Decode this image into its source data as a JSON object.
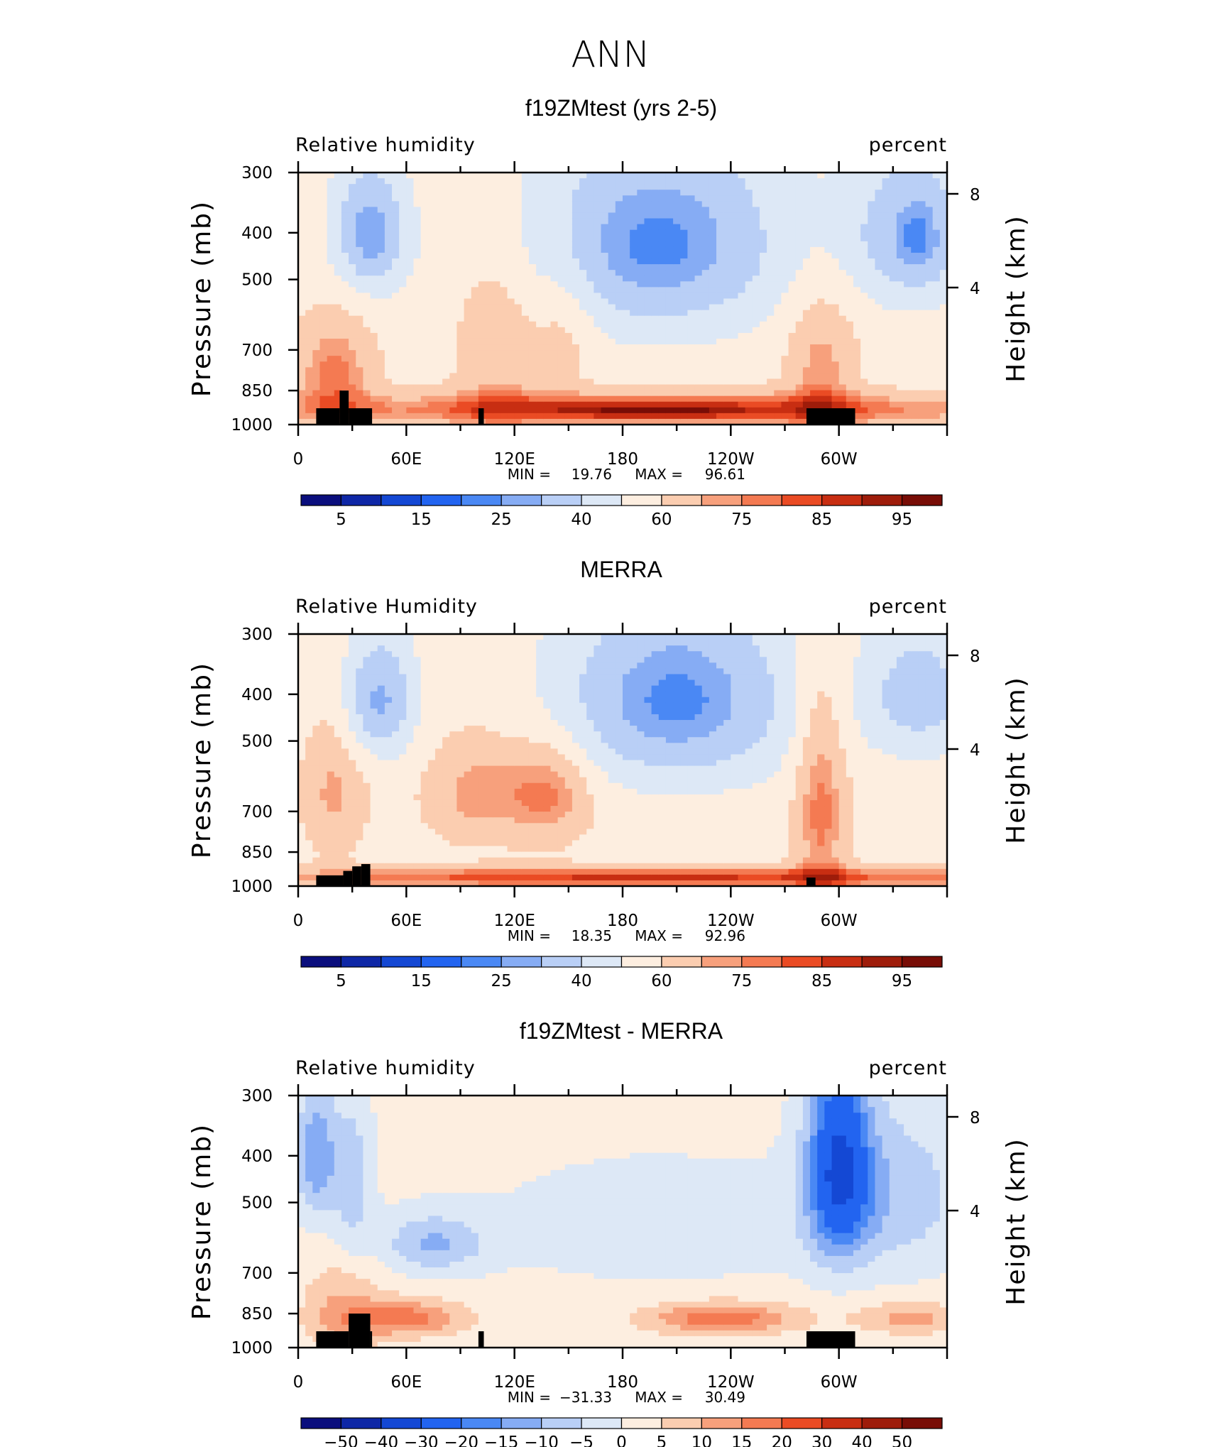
{
  "figure_title": "ANN",
  "colors": {
    "rh_levels": [
      "#0a0e7d",
      "#0e27a6",
      "#1448d4",
      "#2264f0",
      "#4a88f4",
      "#86acf4",
      "#b9cff6",
      "#dde8f6",
      "#fdeee0",
      "#fbcdb0",
      "#f7a07c",
      "#f47a52",
      "#ea4b24",
      "#c82e12",
      "#9e1c0a",
      "#780d06"
    ],
    "diff_levels": [
      "#0a0e7d",
      "#0e27a6",
      "#1448d4",
      "#2264f0",
      "#4a88f4",
      "#86acf4",
      "#b9cff6",
      "#dde8f6",
      "#fdeee0",
      "#fbcdb0",
      "#f7a07c",
      "#f47a52",
      "#ea4b24",
      "#c82e12",
      "#9e1c0a",
      "#780d06"
    ],
    "topography": "#000000"
  },
  "chart_data": [
    {
      "type": "heatmap",
      "title": "f19ZMtest (yrs 2-5)",
      "left_header": "Relative  humidity",
      "right_header": "percent",
      "ylabel": "Pressure  (mb)",
      "ylabel_right": "Height  (km)",
      "x_tick_labels": [
        "0",
        "60E",
        "120E",
        "180",
        "120W",
        "60W"
      ],
      "x_ticks_deg": [
        0,
        60,
        120,
        180,
        240,
        300
      ],
      "x_range_deg": [
        0,
        360
      ],
      "y_tick_labels": [
        "300",
        "400",
        "500",
        "700",
        "850",
        "1000"
      ],
      "y_ticks_mb": [
        300,
        400,
        500,
        700,
        850,
        1000
      ],
      "y_range_mb": [
        1000,
        300
      ],
      "y2_tick_labels": [
        "8",
        "4"
      ],
      "min_label": "MIN =",
      "min_value": "19.76",
      "max_label": "MAX =",
      "max_value": "96.61",
      "colorbar_labels": [
        "5",
        "15",
        "25",
        "40",
        "60",
        "75",
        "85",
        "95"
      ],
      "contour_levels": [
        5,
        10,
        15,
        20,
        25,
        30,
        40,
        50,
        60,
        70,
        75,
        80,
        85,
        90,
        95
      ],
      "topography_blocks": [
        [
          10,
          23,
          1000,
          925
        ],
        [
          23,
          28,
          1000,
          850
        ],
        [
          28,
          41,
          1000,
          925
        ],
        [
          100,
          103,
          1000,
          925
        ],
        [
          282,
          309,
          1000,
          925
        ]
      ],
      "features": {
        "base": 55,
        "blobs": [
          {
            "lon": 40,
            "p": 400,
            "amp": -30,
            "dlon": 14,
            "dp": 85
          },
          {
            "lon": 200,
            "p": 420,
            "amp": -32,
            "dlon": 48,
            "dp": 140
          },
          {
            "lon": 340,
            "p": 400,
            "amp": -25,
            "dlon": 24,
            "dp": 100
          },
          {
            "lon": 345,
            "p": 420,
            "amp": -8,
            "dlon": 8,
            "dp": 60
          },
          {
            "lon": 20,
            "p": 780,
            "amp": 22,
            "dlon": 16,
            "dp": 140
          },
          {
            "lon": 110,
            "p": 700,
            "amp": 14,
            "dlon": 16,
            "dp": 220
          },
          {
            "lon": 148,
            "p": 620,
            "amp": 10,
            "dlon": 12,
            "dp": 150
          },
          {
            "lon": 290,
            "p": 760,
            "amp": 18,
            "dlon": 14,
            "dp": 180
          },
          {
            "lon": 200,
            "p": 930,
            "amp": 30,
            "dlon": 150,
            "dp": 55
          },
          {
            "lon": 200,
            "p": 935,
            "amp": 14,
            "dlon": 40,
            "dp": 20
          }
        ]
      }
    },
    {
      "type": "heatmap",
      "title": "MERRA",
      "left_header": "Relative  Humidity",
      "right_header": "percent",
      "ylabel": "Pressure  (mb)",
      "ylabel_right": "Height  (km)",
      "x_tick_labels": [
        "0",
        "60E",
        "120E",
        "180",
        "120W",
        "60W"
      ],
      "x_ticks_deg": [
        0,
        60,
        120,
        180,
        240,
        300
      ],
      "x_range_deg": [
        0,
        360
      ],
      "y_tick_labels": [
        "300",
        "400",
        "500",
        "700",
        "850",
        "1000"
      ],
      "y_ticks_mb": [
        300,
        400,
        500,
        700,
        850,
        1000
      ],
      "y_range_mb": [
        1000,
        300
      ],
      "y2_tick_labels": [
        "8",
        "4"
      ],
      "min_label": "MIN =",
      "min_value": "18.35",
      "max_label": "MAX =",
      "max_value": "92.96",
      "colorbar_labels": [
        "5",
        "15",
        "25",
        "40",
        "60",
        "75",
        "85",
        "95"
      ],
      "contour_levels": [
        5,
        10,
        15,
        20,
        25,
        30,
        40,
        50,
        60,
        70,
        75,
        80,
        85,
        90,
        95
      ],
      "topography_blocks": [
        [
          10,
          25,
          1000,
          950
        ],
        [
          25,
          30,
          1000,
          930
        ],
        [
          30,
          35,
          1000,
          910
        ],
        [
          35,
          40,
          1000,
          900
        ],
        [
          282,
          287,
          1000,
          960
        ]
      ],
      "features": {
        "base": 56,
        "blobs": [
          {
            "lon": 45,
            "p": 410,
            "amp": -28,
            "dlon": 14,
            "dp": 85
          },
          {
            "lon": 210,
            "p": 410,
            "amp": -33,
            "dlon": 46,
            "dp": 130
          },
          {
            "lon": 345,
            "p": 400,
            "amp": -22,
            "dlon": 22,
            "dp": 90
          },
          {
            "lon": 20,
            "p": 640,
            "amp": 16,
            "dlon": 12,
            "dp": 140
          },
          {
            "lon": 100,
            "p": 640,
            "amp": 18,
            "dlon": 20,
            "dp": 110
          },
          {
            "lon": 140,
            "p": 640,
            "amp": 20,
            "dlon": 16,
            "dp": 110
          },
          {
            "lon": 290,
            "p": 680,
            "amp": 22,
            "dlon": 10,
            "dp": 260
          },
          {
            "lon": 200,
            "p": 960,
            "amp": 30,
            "dlon": 170,
            "dp": 35
          }
        ]
      }
    },
    {
      "type": "heatmap",
      "title": "f19ZMtest - MERRA",
      "left_header": "Relative  humidity",
      "right_header": "percent",
      "ylabel": "Pressure  (mb)",
      "ylabel_right": "Height  (km)",
      "x_tick_labels": [
        "0",
        "60E",
        "120E",
        "180",
        "120W",
        "60W"
      ],
      "x_ticks_deg": [
        0,
        60,
        120,
        180,
        240,
        300
      ],
      "x_range_deg": [
        0,
        360
      ],
      "y_tick_labels": [
        "300",
        "400",
        "500",
        "700",
        "850",
        "1000"
      ],
      "y_ticks_mb": [
        300,
        400,
        500,
        700,
        850,
        1000
      ],
      "y_range_mb": [
        1000,
        300
      ],
      "y2_tick_labels": [
        "8",
        "4"
      ],
      "min_label": "MIN =",
      "min_value": "−31.33",
      "max_label": "MAX =",
      "max_value": "30.49",
      "colorbar_labels": [
        "−50",
        "−40",
        "−30",
        "−20",
        "−15",
        "−10",
        "−5",
        "0",
        "5",
        "10",
        "15",
        "20",
        "30",
        "40",
        "50"
      ],
      "contour_levels": [
        -50,
        -40,
        -30,
        -20,
        -15,
        -10,
        -5,
        0,
        5,
        10,
        15,
        20,
        30,
        40,
        50
      ],
      "topography_blocks": [
        [
          10,
          28,
          1000,
          925
        ],
        [
          28,
          40,
          1000,
          850
        ],
        [
          40,
          41,
          1000,
          925
        ],
        [
          100,
          103,
          1000,
          925
        ],
        [
          282,
          309,
          1000,
          925
        ]
      ],
      "features": {
        "base": 2,
        "blobs": [
          {
            "lon": 10,
            "p": 400,
            "amp": -16,
            "dlon": 8,
            "dp": 90
          },
          {
            "lon": 30,
            "p": 450,
            "amp": -10,
            "dlon": 8,
            "dp": 120
          },
          {
            "lon": 300,
            "p": 420,
            "amp": -30,
            "dlon": 12,
            "dp": 140
          },
          {
            "lon": 330,
            "p": 480,
            "amp": -10,
            "dlon": 30,
            "dp": 140
          },
          {
            "lon": 75,
            "p": 610,
            "amp": -12,
            "dlon": 20,
            "dp": 60
          },
          {
            "lon": 200,
            "p": 560,
            "amp": -5,
            "dlon": 70,
            "dp": 120
          },
          {
            "lon": 60,
            "p": 870,
            "amp": 16,
            "dlon": 22,
            "dp": 50
          },
          {
            "lon": 235,
            "p": 870,
            "amp": 17,
            "dlon": 28,
            "dp": 45
          },
          {
            "lon": 340,
            "p": 870,
            "amp": 10,
            "dlon": 22,
            "dp": 45
          },
          {
            "lon": 25,
            "p": 840,
            "amp": 9,
            "dlon": 15,
            "dp": 120
          }
        ]
      }
    }
  ]
}
